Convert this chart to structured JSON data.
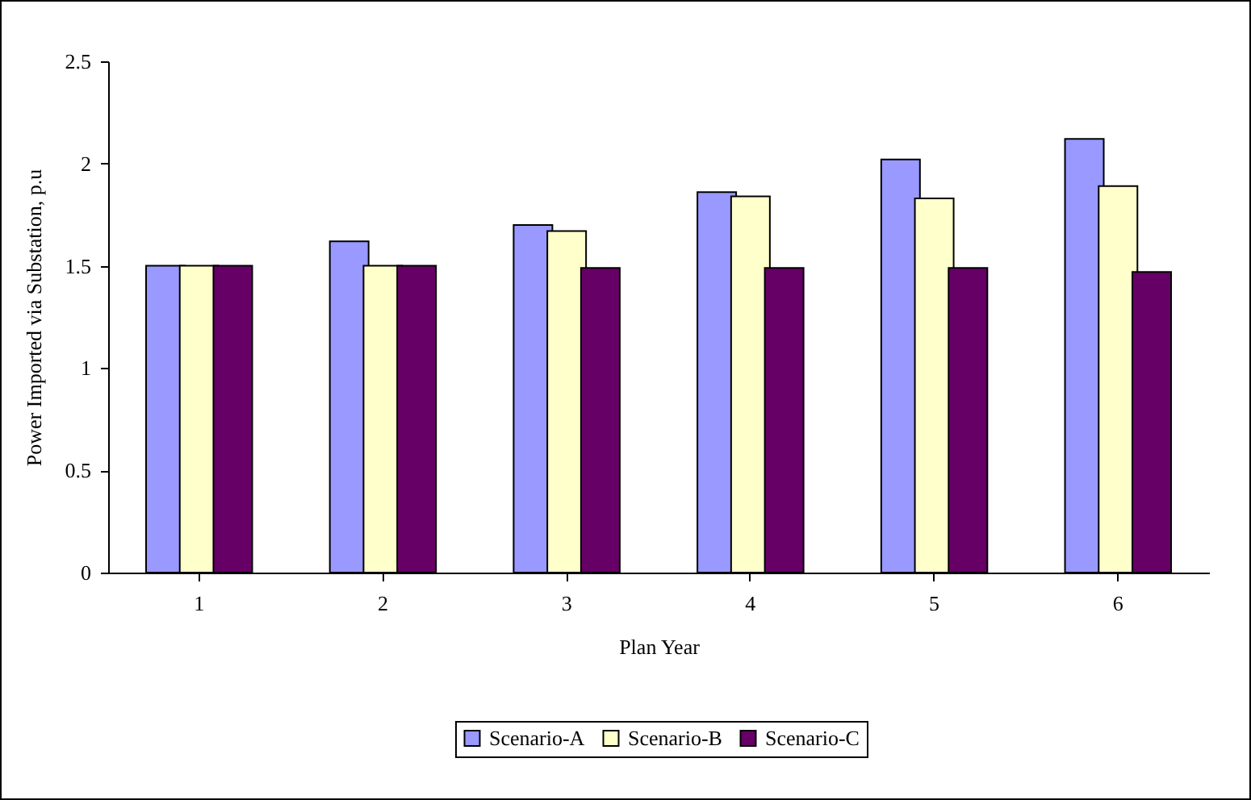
{
  "chart_data": {
    "type": "bar",
    "xlabel": "Plan Year",
    "ylabel": "Power Imported via Substation, p.u",
    "categories": [
      "1",
      "2",
      "3",
      "4",
      "5",
      "6"
    ],
    "series": [
      {
        "name": "Scenario-A",
        "color": "#9999ff",
        "values": [
          1.5,
          1.62,
          1.7,
          1.86,
          2.02,
          2.12
        ]
      },
      {
        "name": "Scenario-B",
        "color": "#ffffcc",
        "values": [
          1.5,
          1.5,
          1.67,
          1.84,
          1.83,
          1.89
        ]
      },
      {
        "name": "Scenario-C",
        "color": "#660066",
        "values": [
          1.5,
          1.5,
          1.49,
          1.49,
          1.49,
          1.47
        ]
      }
    ],
    "ylim": [
      0,
      2.5
    ],
    "yticks": [
      0,
      0.5,
      1,
      1.5,
      2,
      2.5
    ],
    "grid": false,
    "legend": "bottom"
  }
}
